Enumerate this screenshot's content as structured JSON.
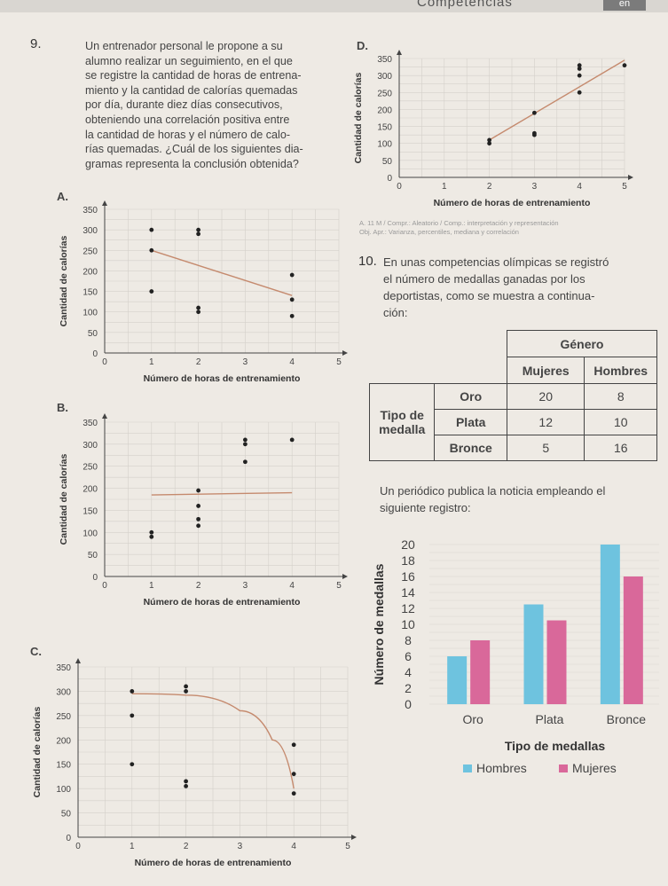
{
  "page_header": {
    "title": "Competencias",
    "tag": "en"
  },
  "q9": {
    "number": "9.",
    "lines": [
      "Un entrenador personal le propone a su",
      "alumno realizar un seguimiento, en el que",
      "se registre la cantidad de horas de entrena-",
      "miento y la cantidad de calorías quemadas",
      "por día, durante diez días consecutivos,",
      "obteniendo una correlación positiva entre",
      "la cantidad de horas y el número de calo-",
      "rías quemadas. ¿Cuál de los siguientes dia-",
      "gramas representa la conclusión obtenida?"
    ]
  },
  "source_note": {
    "line1": "A. 11 M / Compr.: Aleatorio / Comp.: interpretación y representación",
    "line2": "Obj. Apr.: Varianza, percentiles, mediana y correlación"
  },
  "q10": {
    "number": "10.",
    "lines": [
      "En unas competencias olímpicas se registró",
      "el número de medallas ganadas por los",
      "deportistas, como se muestra a continua-",
      "ción:"
    ],
    "table": {
      "header_group": "Género",
      "col_headers": [
        "Mujeres",
        "Hombres"
      ],
      "row_group": "Tipo de medalla",
      "rows": [
        {
          "label": "Oro",
          "mujeres": "20",
          "hombres": "8"
        },
        {
          "label": "Plata",
          "mujeres": "12",
          "hombres": "10"
        },
        {
          "label": "Bronce",
          "mujeres": "5",
          "hombres": "16"
        }
      ]
    },
    "news_lines": [
      "Un periódico publica la noticia empleando el",
      "siguiente registro:"
    ]
  },
  "chart_data": [
    {
      "label": "A.",
      "type": "scatter",
      "xlabel": "Número de horas de entrenamiento",
      "ylabel": "Cantidad de calorías",
      "xlim": [
        0,
        5
      ],
      "ylim": [
        0,
        350
      ],
      "x_ticks": [
        "0",
        "1",
        "2",
        "3",
        "4",
        "5"
      ],
      "y_ticks": [
        "0",
        "50",
        "100",
        "150",
        "200",
        "250",
        "300",
        "350"
      ],
      "points": [
        [
          1,
          300
        ],
        [
          1,
          250
        ],
        [
          1,
          150
        ],
        [
          2,
          300
        ],
        [
          2,
          290
        ],
        [
          2,
          110
        ],
        [
          2,
          100
        ],
        [
          4,
          190
        ],
        [
          4,
          130
        ],
        [
          4,
          90
        ]
      ],
      "trend": {
        "kind": "line",
        "points": [
          [
            1,
            250
          ],
          [
            4,
            140
          ]
        ]
      },
      "grid": true
    },
    {
      "label": "B.",
      "type": "scatter",
      "xlabel": "Número de horas de entrenamiento",
      "ylabel": "Cantidad de calorías",
      "xlim": [
        0,
        5
      ],
      "ylim": [
        0,
        350
      ],
      "x_ticks": [
        "0",
        "1",
        "2",
        "3",
        "4",
        "5"
      ],
      "y_ticks": [
        "0",
        "50",
        "100",
        "150",
        "200",
        "250",
        "300",
        "350"
      ],
      "points": [
        [
          1,
          100
        ],
        [
          1,
          90
        ],
        [
          2,
          195
        ],
        [
          2,
          160
        ],
        [
          2,
          130
        ],
        [
          2,
          115
        ],
        [
          3,
          310
        ],
        [
          3,
          300
        ],
        [
          3,
          260
        ],
        [
          4,
          310
        ]
      ],
      "trend": {
        "kind": "line",
        "points": [
          [
            1,
            185
          ],
          [
            4,
            190
          ]
        ]
      },
      "grid": true
    },
    {
      "label": "C.",
      "type": "scatter",
      "xlabel": "Número de horas de entrenamiento",
      "ylabel": "Cantidad de calorías",
      "xlim": [
        0,
        5
      ],
      "ylim": [
        0,
        350
      ],
      "x_ticks": [
        "0",
        "1",
        "2",
        "3",
        "4",
        "5"
      ],
      "y_ticks": [
        "0",
        "50",
        "100",
        "150",
        "200",
        "250",
        "300",
        "350"
      ],
      "points": [
        [
          1,
          300
        ],
        [
          1,
          250
        ],
        [
          1,
          150
        ],
        [
          2,
          310
        ],
        [
          2,
          300
        ],
        [
          2,
          115
        ],
        [
          2,
          105
        ],
        [
          4,
          190
        ],
        [
          4,
          130
        ],
        [
          4,
          90
        ]
      ],
      "trend": {
        "kind": "curve",
        "points": [
          [
            1,
            295
          ],
          [
            2,
            292
          ],
          [
            3,
            260
          ],
          [
            3.6,
            200
          ],
          [
            4,
            100
          ]
        ]
      },
      "grid": true
    },
    {
      "label": "D.",
      "type": "scatter",
      "xlabel": "Número de horas de entrenamiento",
      "ylabel": "Cantidad de calorías",
      "xlim": [
        0,
        5
      ],
      "ylim": [
        0,
        350
      ],
      "x_ticks": [
        "0",
        "1",
        "2",
        "3",
        "4",
        "5"
      ],
      "y_ticks": [
        "0",
        "50",
        "100",
        "150",
        "200",
        "250",
        "300",
        "350"
      ],
      "points": [
        [
          2,
          110
        ],
        [
          2,
          100
        ],
        [
          3,
          130
        ],
        [
          3,
          125
        ],
        [
          3,
          190
        ],
        [
          4,
          250
        ],
        [
          4,
          300
        ],
        [
          4,
          320
        ],
        [
          4,
          330
        ],
        [
          5,
          330
        ]
      ],
      "trend": {
        "kind": "line",
        "points": [
          [
            2,
            110
          ],
          [
            5,
            345
          ]
        ]
      },
      "grid": true
    },
    {
      "label": "",
      "type": "bar",
      "xlabel": "Tipo de medallas",
      "ylabel": "Número de medallas",
      "categories": [
        "Oro",
        "Plata",
        "Bronce"
      ],
      "ylim": [
        0,
        20
      ],
      "y_ticks": [
        "0",
        "2",
        "4",
        "6",
        "8",
        "10",
        "12",
        "14",
        "16",
        "18",
        "20"
      ],
      "series": [
        {
          "name": "Hombres",
          "values": [
            6,
            12.5,
            20
          ],
          "color": "#6ec3df"
        },
        {
          "name": "Mujeres",
          "values": [
            8,
            10.5,
            16
          ],
          "color": "#d9689a"
        }
      ],
      "legend": "bottom",
      "grid": true
    }
  ]
}
